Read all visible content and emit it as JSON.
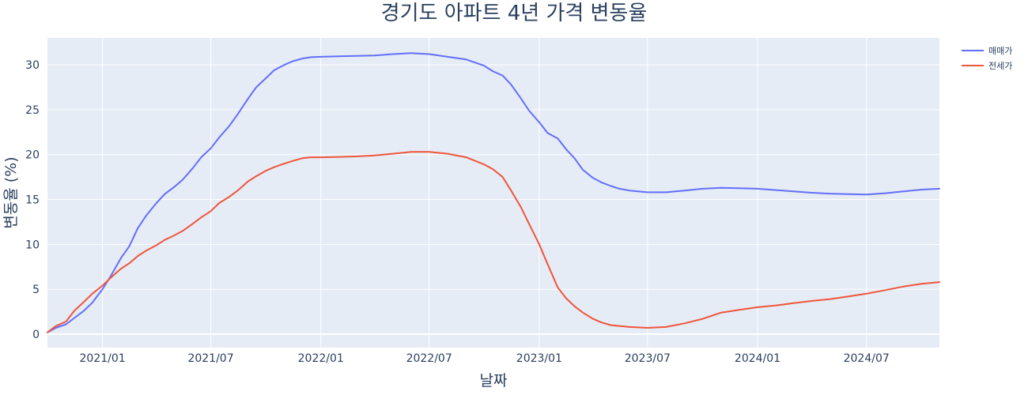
{
  "chart_data": {
    "type": "line",
    "title": "경기도 아파트 4년 가격 변동율",
    "xlabel": "날짜",
    "ylabel": "변동율 (%)",
    "xlim": [
      "2020-10-01",
      "2024-10-31"
    ],
    "ylim": [
      -1.5,
      33.0
    ],
    "x_ticks": [
      {
        "date": "2021-01-01",
        "label": "2021/01"
      },
      {
        "date": "2021-07-01",
        "label": "2021/07"
      },
      {
        "date": "2022-01-01",
        "label": "2022/01"
      },
      {
        "date": "2022-07-01",
        "label": "2022/07"
      },
      {
        "date": "2023-01-01",
        "label": "2023/01"
      },
      {
        "date": "2023-07-01",
        "label": "2023/07"
      },
      {
        "date": "2024-01-01",
        "label": "2024/01"
      },
      {
        "date": "2024-07-01",
        "label": "2024/07"
      }
    ],
    "y_ticks": [
      0,
      5,
      10,
      15,
      20,
      25,
      30
    ],
    "grid": true,
    "legend_position": "top-right",
    "colors": {
      "plot_background": "#e5ecf6",
      "grid": "#ffffff",
      "text": "#2a3f5f"
    },
    "series": [
      {
        "name": "매매가",
        "color": "#636efa",
        "points": [
          [
            "2020-10-01",
            0.2
          ],
          [
            "2020-10-15",
            0.7
          ],
          [
            "2020-11-01",
            1.1
          ],
          [
            "2020-11-15",
            1.8
          ],
          [
            "2020-12-01",
            2.6
          ],
          [
            "2020-12-15",
            3.5
          ],
          [
            "2021-01-01",
            5.0
          ],
          [
            "2021-01-15",
            6.5
          ],
          [
            "2021-02-01",
            8.5
          ],
          [
            "2021-02-15",
            9.8
          ],
          [
            "2021-03-01",
            11.8
          ],
          [
            "2021-03-15",
            13.2
          ],
          [
            "2021-04-01",
            14.6
          ],
          [
            "2021-04-15",
            15.6
          ],
          [
            "2021-05-01",
            16.4
          ],
          [
            "2021-05-15",
            17.2
          ],
          [
            "2021-06-01",
            18.5
          ],
          [
            "2021-06-15",
            19.7
          ],
          [
            "2021-07-01",
            20.7
          ],
          [
            "2021-07-15",
            21.9
          ],
          [
            "2021-08-01",
            23.2
          ],
          [
            "2021-08-15",
            24.5
          ],
          [
            "2021-09-01",
            26.2
          ],
          [
            "2021-09-15",
            27.5
          ],
          [
            "2021-10-01",
            28.5
          ],
          [
            "2021-10-15",
            29.4
          ],
          [
            "2021-11-01",
            30.0
          ],
          [
            "2021-11-15",
            30.4
          ],
          [
            "2021-12-01",
            30.7
          ],
          [
            "2021-12-15",
            30.85
          ],
          [
            "2022-01-01",
            30.9
          ],
          [
            "2022-02-01",
            30.95
          ],
          [
            "2022-03-01",
            31.0
          ],
          [
            "2022-04-01",
            31.05
          ],
          [
            "2022-05-01",
            31.2
          ],
          [
            "2022-06-01",
            31.3
          ],
          [
            "2022-07-01",
            31.2
          ],
          [
            "2022-08-01",
            30.9
          ],
          [
            "2022-09-01",
            30.6
          ],
          [
            "2022-10-01",
            29.9
          ],
          [
            "2022-10-15",
            29.3
          ],
          [
            "2022-11-01",
            28.8
          ],
          [
            "2022-11-15",
            27.8
          ],
          [
            "2022-12-01",
            26.3
          ],
          [
            "2022-12-15",
            24.9
          ],
          [
            "2023-01-01",
            23.6
          ],
          [
            "2023-01-15",
            22.4
          ],
          [
            "2023-02-01",
            21.8
          ],
          [
            "2023-02-15",
            20.6
          ],
          [
            "2023-03-01",
            19.6
          ],
          [
            "2023-03-15",
            18.3
          ],
          [
            "2023-04-01",
            17.4
          ],
          [
            "2023-04-15",
            16.9
          ],
          [
            "2023-05-01",
            16.5
          ],
          [
            "2023-05-15",
            16.2
          ],
          [
            "2023-06-01",
            16.0
          ],
          [
            "2023-07-01",
            15.8
          ],
          [
            "2023-08-01",
            15.8
          ],
          [
            "2023-09-01",
            16.0
          ],
          [
            "2023-10-01",
            16.2
          ],
          [
            "2023-11-01",
            16.3
          ],
          [
            "2023-12-01",
            16.25
          ],
          [
            "2024-01-01",
            16.2
          ],
          [
            "2024-02-01",
            16.05
          ],
          [
            "2024-03-01",
            15.9
          ],
          [
            "2024-04-01",
            15.75
          ],
          [
            "2024-05-01",
            15.65
          ],
          [
            "2024-06-01",
            15.6
          ],
          [
            "2024-07-01",
            15.55
          ],
          [
            "2024-08-01",
            15.7
          ],
          [
            "2024-09-01",
            15.9
          ],
          [
            "2024-10-01",
            16.1
          ],
          [
            "2024-10-31",
            16.2
          ]
        ]
      },
      {
        "name": "전세가",
        "color": "#ef553b",
        "points": [
          [
            "2020-10-01",
            0.2
          ],
          [
            "2020-10-15",
            0.9
          ],
          [
            "2020-11-01",
            1.4
          ],
          [
            "2020-11-15",
            2.6
          ],
          [
            "2020-12-01",
            3.6
          ],
          [
            "2020-12-15",
            4.5
          ],
          [
            "2021-01-01",
            5.4
          ],
          [
            "2021-01-15",
            6.3
          ],
          [
            "2021-02-01",
            7.3
          ],
          [
            "2021-02-15",
            7.9
          ],
          [
            "2021-03-01",
            8.7
          ],
          [
            "2021-03-15",
            9.3
          ],
          [
            "2021-04-01",
            9.9
          ],
          [
            "2021-04-15",
            10.5
          ],
          [
            "2021-05-01",
            11.0
          ],
          [
            "2021-05-15",
            11.5
          ],
          [
            "2021-06-01",
            12.3
          ],
          [
            "2021-06-15",
            13.0
          ],
          [
            "2021-07-01",
            13.7
          ],
          [
            "2021-07-15",
            14.6
          ],
          [
            "2021-08-01",
            15.3
          ],
          [
            "2021-08-15",
            16.0
          ],
          [
            "2021-09-01",
            17.0
          ],
          [
            "2021-09-15",
            17.6
          ],
          [
            "2021-10-01",
            18.2
          ],
          [
            "2021-10-15",
            18.6
          ],
          [
            "2021-11-01",
            19.0
          ],
          [
            "2021-11-15",
            19.3
          ],
          [
            "2021-12-01",
            19.6
          ],
          [
            "2021-12-15",
            19.7
          ],
          [
            "2022-01-01",
            19.7
          ],
          [
            "2022-02-01",
            19.75
          ],
          [
            "2022-03-01",
            19.8
          ],
          [
            "2022-04-01",
            19.9
          ],
          [
            "2022-05-01",
            20.1
          ],
          [
            "2022-06-01",
            20.3
          ],
          [
            "2022-07-01",
            20.3
          ],
          [
            "2022-08-01",
            20.1
          ],
          [
            "2022-09-01",
            19.7
          ],
          [
            "2022-10-01",
            18.9
          ],
          [
            "2022-10-15",
            18.4
          ],
          [
            "2022-11-01",
            17.5
          ],
          [
            "2022-11-15",
            16.0
          ],
          [
            "2022-12-01",
            14.2
          ],
          [
            "2022-12-15",
            12.3
          ],
          [
            "2023-01-01",
            10.0
          ],
          [
            "2023-01-15",
            7.8
          ],
          [
            "2023-02-01",
            5.2
          ],
          [
            "2023-02-15",
            4.0
          ],
          [
            "2023-03-01",
            3.1
          ],
          [
            "2023-03-15",
            2.4
          ],
          [
            "2023-04-01",
            1.7
          ],
          [
            "2023-04-15",
            1.3
          ],
          [
            "2023-05-01",
            1.0
          ],
          [
            "2023-06-01",
            0.8
          ],
          [
            "2023-07-01",
            0.7
          ],
          [
            "2023-08-01",
            0.8
          ],
          [
            "2023-09-01",
            1.2
          ],
          [
            "2023-10-01",
            1.7
          ],
          [
            "2023-11-01",
            2.4
          ],
          [
            "2023-12-01",
            2.7
          ],
          [
            "2024-01-01",
            3.0
          ],
          [
            "2024-02-01",
            3.2
          ],
          [
            "2024-03-01",
            3.45
          ],
          [
            "2024-04-01",
            3.7
          ],
          [
            "2024-05-01",
            3.9
          ],
          [
            "2024-06-01",
            4.2
          ],
          [
            "2024-07-01",
            4.5
          ],
          [
            "2024-08-01",
            4.9
          ],
          [
            "2024-09-01",
            5.3
          ],
          [
            "2024-10-01",
            5.6
          ],
          [
            "2024-10-31",
            5.8
          ]
        ]
      }
    ]
  }
}
